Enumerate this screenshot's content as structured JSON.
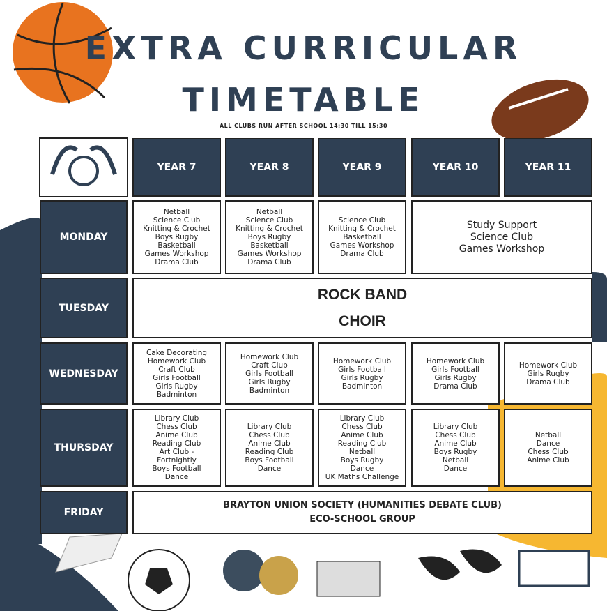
{
  "header": {
    "title": [
      "EXTRA CURRICULAR",
      "TIMETABLE"
    ],
    "subtitle": "ALL CLUBS RUN AFTER SCHOOL 14:30 TILL 15:30"
  },
  "table": {
    "columns": [
      "YEAR 7",
      "YEAR 8",
      "YEAR 9",
      "YEAR 10",
      "YEAR 11"
    ],
    "rows": [
      {
        "day": "MONDAY",
        "cells": [
          [
            "Netball",
            "Science Club",
            "Knitting & Crochet",
            "Boys Rugby",
            "Basketball",
            "Games Workshop",
            "Drama Club"
          ],
          [
            "Netball",
            "Science Club",
            "Knitting & Crochet",
            "Boys Rugby",
            "Basketball",
            "Games Workshop",
            "Drama Club"
          ],
          [
            "Science Club",
            "Knitting & Crochet",
            "Basketball",
            "Games Workshop",
            "Drama Club"
          ],
          [
            "Study Support",
            "Science Club",
            "Games Workshop"
          ]
        ]
      },
      {
        "day": "TUESDAY",
        "cells": [
          [
            "ROCK BAND",
            "CHOIR"
          ]
        ]
      },
      {
        "day": "WEDNESDAY",
        "cells": [
          [
            "Cake Decorating",
            "Homework Club",
            "Craft Club",
            "Girls Football",
            "Girls Rugby",
            "Badminton"
          ],
          [
            "Homework Club",
            "Craft Club",
            "Girls Football",
            "Girls Rugby",
            "Badminton"
          ],
          [
            "Homework Club",
            "Girls Football",
            "Girls Rugby",
            "Badminton"
          ],
          [
            "Homework Club",
            "Girls Football",
            "Girls Rugby",
            "Drama Club"
          ],
          [
            "Homework Club",
            "Girls Rugby",
            "Drama Club"
          ]
        ]
      },
      {
        "day": "THURSDAY",
        "cells": [
          [
            "Library Club",
            "Chess Club",
            "Anime Club",
            "Reading Club",
            "Art Club -",
            "Fortnightly",
            "Boys Football",
            "Dance"
          ],
          [
            "Library Club",
            "Chess Club",
            "Anime Club",
            "Reading Club",
            "Boys Football",
            "Dance"
          ],
          [
            "Library Club",
            "Chess Club",
            "Anime Club",
            "Reading Club",
            "Netball",
            "Boys Rugby",
            "Dance",
            "UK Maths Challenge"
          ],
          [
            "Library Club",
            "Chess Club",
            "Anime Club",
            "Boys Rugby",
            "Netball",
            "Dance"
          ],
          [
            "Netball",
            "Dance",
            "Chess Club",
            "Anime Club"
          ]
        ]
      },
      {
        "day": "FRIDAY",
        "cells": [
          [
            "BRAYTON UNION SOCIETY (HUMANITIES DEBATE CLUB)",
            "ECO-SCHOOL GROUP"
          ]
        ]
      }
    ]
  }
}
